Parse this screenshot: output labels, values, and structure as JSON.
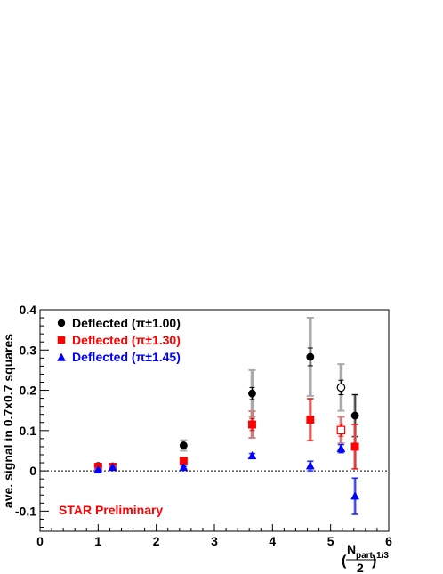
{
  "chart_data": {
    "type": "scatter",
    "xlabel_main": "N",
    "xlabel_sub": "part",
    "xlabel_den": "2",
    "xlabel_exp": "1/3",
    "xlabel_open": "(",
    "xlabel_close": ")",
    "ylabel": "ave. signal in 0.7x0.7 squares",
    "xlim": [
      0,
      6
    ],
    "ylim": [
      -0.15,
      0.4
    ],
    "x_ticks": [
      0,
      1,
      2,
      3,
      4,
      5,
      6
    ],
    "x_tick_labels": [
      "0",
      "1",
      "2",
      "3",
      "4",
      "5",
      "6"
    ],
    "y_ticks": [
      -0.1,
      0,
      0.1,
      0.2,
      0.3,
      0.4
    ],
    "y_tick_labels": [
      "-0.1",
      "0",
      "0.1",
      "0.2",
      "0.3",
      "0.4"
    ],
    "reference_line_y": 0,
    "annotation": "STAR Preliminary",
    "legend_position": "top-left",
    "series": [
      {
        "name": "Deflected (π±1.00)",
        "marker": "circle",
        "color": "#000000",
        "sys_color": "#aaaaaa",
        "points": [
          {
            "x": 1.0,
            "y": 0.012,
            "stat": 0.003,
            "sys": 0.004,
            "open": false
          },
          {
            "x": 1.25,
            "y": 0.011,
            "stat": 0.003,
            "sys": 0.004,
            "open": false
          },
          {
            "x": 2.47,
            "y": 0.063,
            "stat": 0.006,
            "sys": 0.013,
            "open": false
          },
          {
            "x": 3.65,
            "y": 0.192,
            "stat": 0.015,
            "sys": 0.058,
            "open": false
          },
          {
            "x": 4.65,
            "y": 0.283,
            "stat": 0.022,
            "sys": 0.097,
            "open": false
          },
          {
            "x": 5.18,
            "y": 0.207,
            "stat": 0.018,
            "sys": 0.058,
            "open": true
          },
          {
            "x": 5.42,
            "y": 0.137,
            "stat": 0.052,
            "sys": 0.052,
            "open": false
          }
        ]
      },
      {
        "name": "Deflected (π±1.30)",
        "marker": "square",
        "color": "#ff0000",
        "sys_color": "#c98080",
        "points": [
          {
            "x": 1.0,
            "y": 0.01,
            "stat": 0.003,
            "sys": 0.004,
            "open": false
          },
          {
            "x": 1.25,
            "y": 0.01,
            "stat": 0.003,
            "sys": 0.004,
            "open": false
          },
          {
            "x": 2.47,
            "y": 0.025,
            "stat": 0.005,
            "sys": 0.006,
            "open": false
          },
          {
            "x": 3.65,
            "y": 0.115,
            "stat": 0.015,
            "sys": 0.033,
            "open": false
          },
          {
            "x": 4.65,
            "y": 0.127,
            "stat": 0.052,
            "sys": 0.052,
            "open": false
          },
          {
            "x": 5.18,
            "y": 0.101,
            "stat": 0.015,
            "sys": 0.033,
            "open": true
          },
          {
            "x": 5.42,
            "y": 0.06,
            "stat": 0.055,
            "sys": 0.055,
            "open": false
          }
        ]
      },
      {
        "name": "Deflected (π±1.45)",
        "marker": "triangle",
        "color": "#0000ff",
        "sys_color": "#9fa6d9",
        "points": [
          {
            "x": 1.0,
            "y": 0.002,
            "stat": 0.003,
            "sys": 0.003,
            "open": false
          },
          {
            "x": 1.25,
            "y": 0.008,
            "stat": 0.003,
            "sys": 0.003,
            "open": false
          },
          {
            "x": 2.47,
            "y": 0.008,
            "stat": 0.003,
            "sys": 0.003,
            "open": false
          },
          {
            "x": 3.65,
            "y": 0.037,
            "stat": 0.006,
            "sys": 0.006,
            "open": false
          },
          {
            "x": 4.65,
            "y": 0.012,
            "stat": 0.012,
            "sys": 0.012,
            "open": false
          },
          {
            "x": 5.18,
            "y": 0.055,
            "stat": 0.01,
            "sys": 0.01,
            "open": false
          },
          {
            "x": 5.42,
            "y": -0.063,
            "stat": 0.045,
            "sys": 0.045,
            "open": false
          }
        ]
      }
    ]
  }
}
